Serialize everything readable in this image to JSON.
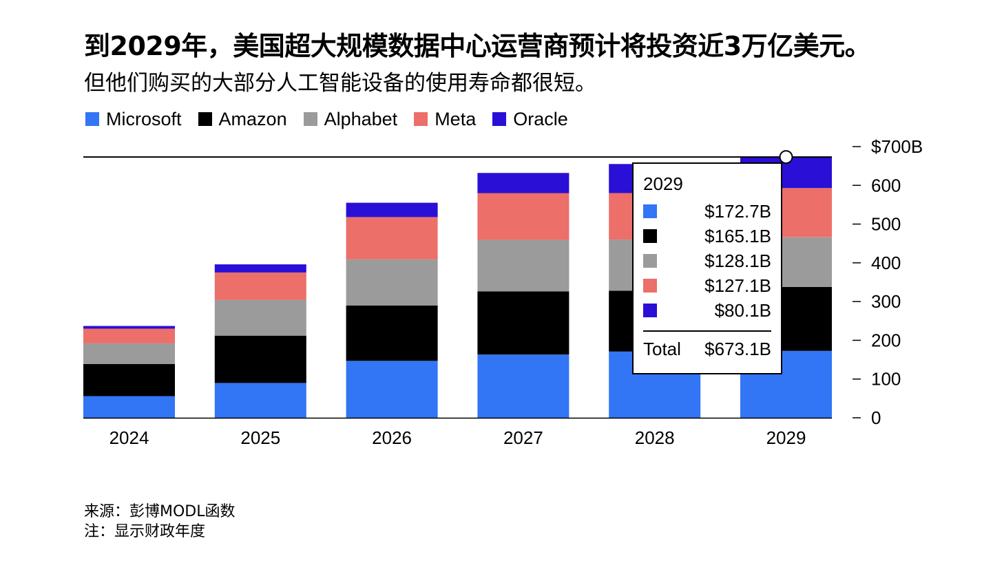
{
  "title": "到2029年，美国超大规模数据中心运营商预计将投资近3万亿美元。",
  "subtitle": "但他们购买的大部分人工智能设备的使用寿命都很短。",
  "footer": {
    "source": "来源：彭博MODL函数",
    "note": "注：显示财政年度"
  },
  "colors": {
    "microsoft": "#3275f5",
    "amazon": "#000000",
    "alphabet": "#9b9b9b",
    "meta": "#ec6f69",
    "oracle": "#2a0fd6"
  },
  "chart_data": {
    "type": "bar",
    "stacked": true,
    "categories": [
      "2024",
      "2025",
      "2026",
      "2027",
      "2028",
      "2029"
    ],
    "series": [
      {
        "name": "Microsoft",
        "color": "#3275f5",
        "values": [
          56,
          90,
          147,
          163,
          171,
          172.7
        ]
      },
      {
        "name": "Amazon",
        "color": "#000000",
        "values": [
          83,
          122,
          143,
          163,
          157,
          165.1
        ]
      },
      {
        "name": "Alphabet",
        "color": "#9b9b9b",
        "values": [
          53,
          92,
          119,
          133,
          132,
          128.1
        ]
      },
      {
        "name": "Meta",
        "color": "#ec6f69",
        "values": [
          38,
          71,
          109,
          121,
          120,
          127.1
        ]
      },
      {
        "name": "Oracle",
        "color": "#2a0fd6",
        "values": [
          7,
          21,
          37,
          52,
          75,
          80.1
        ]
      }
    ],
    "y_ticks": [
      {
        "value": 0,
        "label": "0"
      },
      {
        "value": 100,
        "label": "100"
      },
      {
        "value": 200,
        "label": "200"
      },
      {
        "value": 300,
        "label": "300"
      },
      {
        "value": 400,
        "label": "400"
      },
      {
        "value": 500,
        "label": "500"
      },
      {
        "value": 600,
        "label": "600"
      },
      {
        "value": 700,
        "label": "$700B"
      }
    ],
    "ylim": [
      0,
      700
    ],
    "legend_position": "top-left",
    "reference_line": 673.1,
    "tooltip": {
      "year": "2029",
      "rows": [
        {
          "series": "Microsoft",
          "color": "#3275f5",
          "label": "$172.7B"
        },
        {
          "series": "Amazon",
          "color": "#000000",
          "label": "$165.1B"
        },
        {
          "series": "Alphabet",
          "color": "#9b9b9b",
          "label": "$128.1B"
        },
        {
          "series": "Meta",
          "color": "#ec6f69",
          "label": "$127.1B"
        },
        {
          "series": "Oracle",
          "color": "#2a0fd6",
          "label": "$80.1B"
        }
      ],
      "total_label": "Total",
      "total_value": "$673.1B"
    }
  }
}
